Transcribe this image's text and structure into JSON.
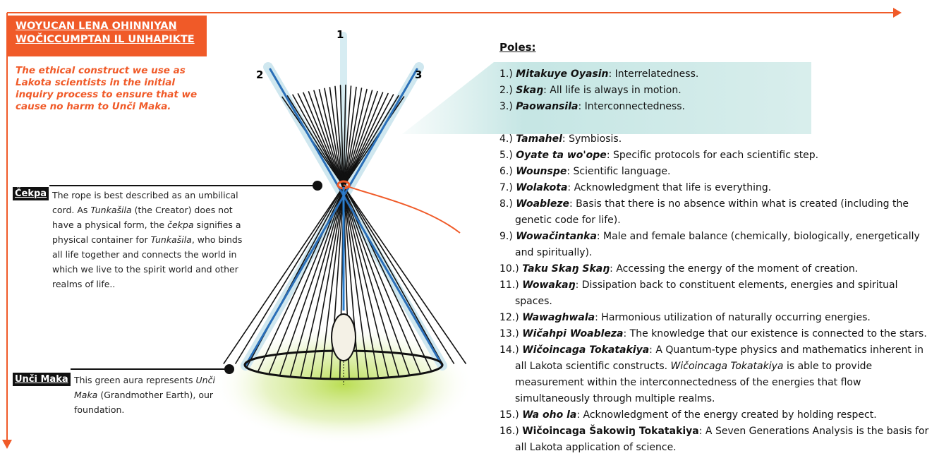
{
  "header": {
    "title_lines": [
      "WOYUCAN LENA OHINNIYAN",
      "WOČICCUMPTAN IL UNHAPIKTE"
    ],
    "subtitle": "The ethical construct we use as Lakota scientists in the initial inquiry process to ensure that we cause no harm to Unči Maka."
  },
  "pole_labels": [
    "1",
    "2",
    "3"
  ],
  "annotations": [
    {
      "label": "Čekpa",
      "parts": [
        "The rope is best described as an umbilical cord. As ",
        "Tunkašila",
        " (the Creator) does not have a physical form, the ",
        "čekpa",
        " signifies a physical container for ",
        "Tunkašila",
        ", who binds all life together and connects the world in which we live to the spirit world and other realms of life.."
      ]
    },
    {
      "label": "Unči Maka",
      "parts": [
        "This green aura represents ",
        "Unči Maka",
        " (Grandmother Earth), our foundation."
      ]
    }
  ],
  "poles": {
    "heading": "Poles:",
    "items": [
      {
        "number": "1.)",
        "term": "Mitakuye Oyasin",
        "parts": [
          ": Interrelatedness."
        ]
      },
      {
        "number": "2.)",
        "term": "Skaŋ",
        "parts": [
          ": All life is always in motion."
        ]
      },
      {
        "number": "3.)",
        "term": "Paowansila",
        "parts": [
          ": Interconnectedness."
        ]
      },
      {
        "number": "4.)",
        "term": "Tamahel",
        "parts": [
          ": Symbiosis."
        ]
      },
      {
        "number": "5.)",
        "term": "Oyate ta wo'ope",
        "parts": [
          ": Specific protocols for each scientific step."
        ]
      },
      {
        "number": "6.)",
        "term": "Wounspe",
        "parts": [
          ": Scientific language."
        ]
      },
      {
        "number": "7.)",
        "term": "Wolakota",
        "parts": [
          ": Acknowledgment that life is everything."
        ]
      },
      {
        "number": "8.)",
        "term": "Woableze",
        "parts": [
          ": Basis that there is no absence within what is created (including the genetic code for life)."
        ]
      },
      {
        "number": "9.)",
        "term": "Wowačintanka",
        "parts": [
          ": Male and female balance (chemically, biologically, energetically and spiritually)."
        ]
      },
      {
        "number": "10.)",
        "term": "Taku Skaŋ Skaŋ",
        "parts": [
          ": Accessing the energy of the moment of creation."
        ]
      },
      {
        "number": "11.)",
        "term": "Wowakaŋ",
        "parts": [
          ": Dissipation back to constituent elements, energies and spiritual spaces."
        ]
      },
      {
        "number": "12.)",
        "term": "Wawaghwala",
        "parts": [
          ": Harmonious utilization of naturally occurring energies."
        ]
      },
      {
        "number": "13.)",
        "term": "Wičahpi Woableza",
        "parts": [
          ": The knowledge that our existence is connected to the stars."
        ]
      },
      {
        "number": "14.)",
        "term": "Wičoincaga Tokatakiya",
        "parts": [
          ": A Quantum-type physics and mathematics inherent in all Lakota scientific constructs. ",
          "Wičoincaga Tokatakiya",
          " is able to provide measurement within the interconnectedness of the energies that flow simultaneously through multiple realms."
        ]
      },
      {
        "number": "15.)",
        "term": "Wa oho la",
        "parts": [
          ": Acknowledgment of the energy created by holding respect."
        ]
      },
      {
        "number": "16.)",
        "term": "Wičoincaga Šakowiŋ Tokatakiya",
        "parts": [
          ": A Seven Generations Analysis is the basis for all Lakota application of science."
        ]
      }
    ]
  }
}
